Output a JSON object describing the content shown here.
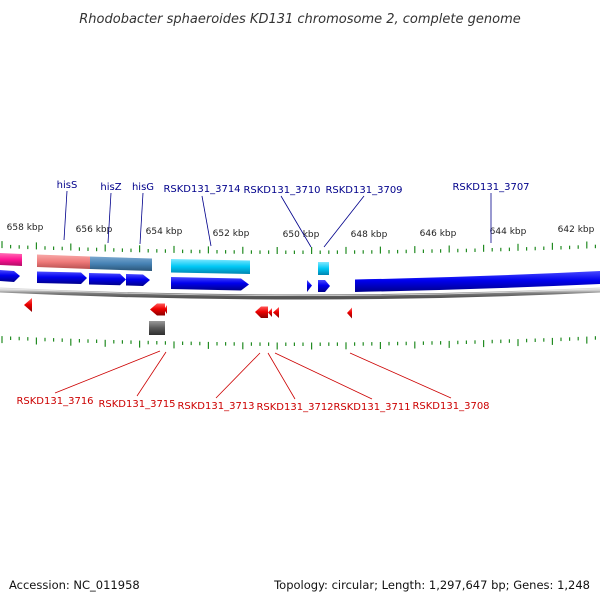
{
  "title": "Rhodobacter sphaeroides KD131 chromosome 2, complete genome",
  "scale_labels": [
    "658 kbp",
    "656 kbp",
    "654 kbp",
    "652 kbp",
    "650 kbp",
    "648 kbp",
    "646 kbp",
    "644 kbp",
    "642 kbp"
  ],
  "top_labels": [
    {
      "name": "hisS",
      "color": "#00008b"
    },
    {
      "name": "hisZ",
      "color": "#00008b"
    },
    {
      "name": "hisG",
      "color": "#00008b"
    },
    {
      "name": "RSKD131_3714",
      "color": "#00008b"
    },
    {
      "name": "RSKD131_3710",
      "color": "#00008b"
    },
    {
      "name": "RSKD131_3709",
      "color": "#00008b"
    },
    {
      "name": "RSKD131_3707",
      "color": "#00008b"
    }
  ],
  "bottom_labels": [
    {
      "name": "RSKD131_3716",
      "color": "#cc0000"
    },
    {
      "name": "RSKD131_3715",
      "color": "#cc0000"
    },
    {
      "name": "RSKD131_3713",
      "color": "#cc0000"
    },
    {
      "name": "RSKD131_3712",
      "color": "#cc0000"
    },
    {
      "name": "RSKD131_3711",
      "color": "#cc0000"
    },
    {
      "name": "RSKD131_3708",
      "color": "#cc0000"
    }
  ],
  "colors": {
    "forward_cds": "#0000ee",
    "reverse_cds": "#ee0000",
    "tick": "#228b22",
    "backbone": "#777777",
    "rna_pink": "#f08080",
    "rna_steel": "#4682b4",
    "rna_cyan": "#00bfff",
    "rna_gray": "#555555",
    "magenta": "#ff1493"
  },
  "footer": {
    "accession": "Accession: NC_011958",
    "summary": "Topology: circular; Length: 1,297,647 bp; Genes: 1,248"
  }
}
